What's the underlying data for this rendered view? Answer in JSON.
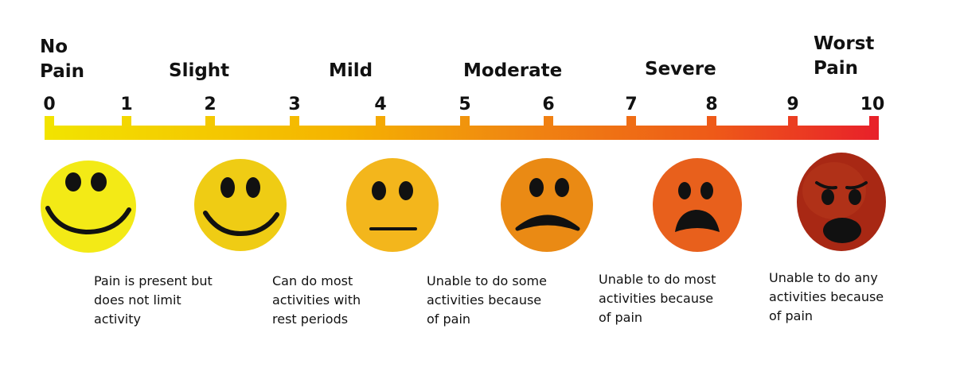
{
  "scale": {
    "levels": [
      {
        "label": "No Pain",
        "line1": "No",
        "line2": "Pain"
      },
      {
        "label": "Slight"
      },
      {
        "label": "Mild"
      },
      {
        "label": "Moderate"
      },
      {
        "label": "Severe"
      },
      {
        "label": "Worst Pain",
        "line1": "Worst",
        "line2": "Pain"
      }
    ],
    "numbers": [
      "0",
      "1",
      "2",
      "3",
      "4",
      "5",
      "6",
      "7",
      "8",
      "9",
      "10"
    ],
    "gradient": [
      "#f2e400",
      "#f5b400",
      "#f08a10",
      "#ee5a18",
      "#e8202a"
    ]
  },
  "faces": [
    {
      "name": "smile-big-face",
      "color": "#f3ea16"
    },
    {
      "name": "smile-face",
      "color": "#efcc14"
    },
    {
      "name": "neutral-face",
      "color": "#f3b61c"
    },
    {
      "name": "frown-face",
      "color": "#ea8a14"
    },
    {
      "name": "sad-face",
      "color": "#e8601c"
    },
    {
      "name": "crying-face",
      "color": "#a82814"
    }
  ],
  "descriptions": [
    {
      "lines": [
        "Pain is present but",
        "does not limit",
        "activity"
      ]
    },
    {
      "lines": [
        "Can do most",
        "activities with",
        "rest periods"
      ]
    },
    {
      "lines": [
        "Unable to do some",
        "activities because",
        "of pain"
      ]
    },
    {
      "lines": [
        "Unable to do most",
        "activities because",
        "of pain"
      ]
    },
    {
      "lines": [
        "Unable to do any",
        "activities because",
        "of pain"
      ]
    }
  ]
}
